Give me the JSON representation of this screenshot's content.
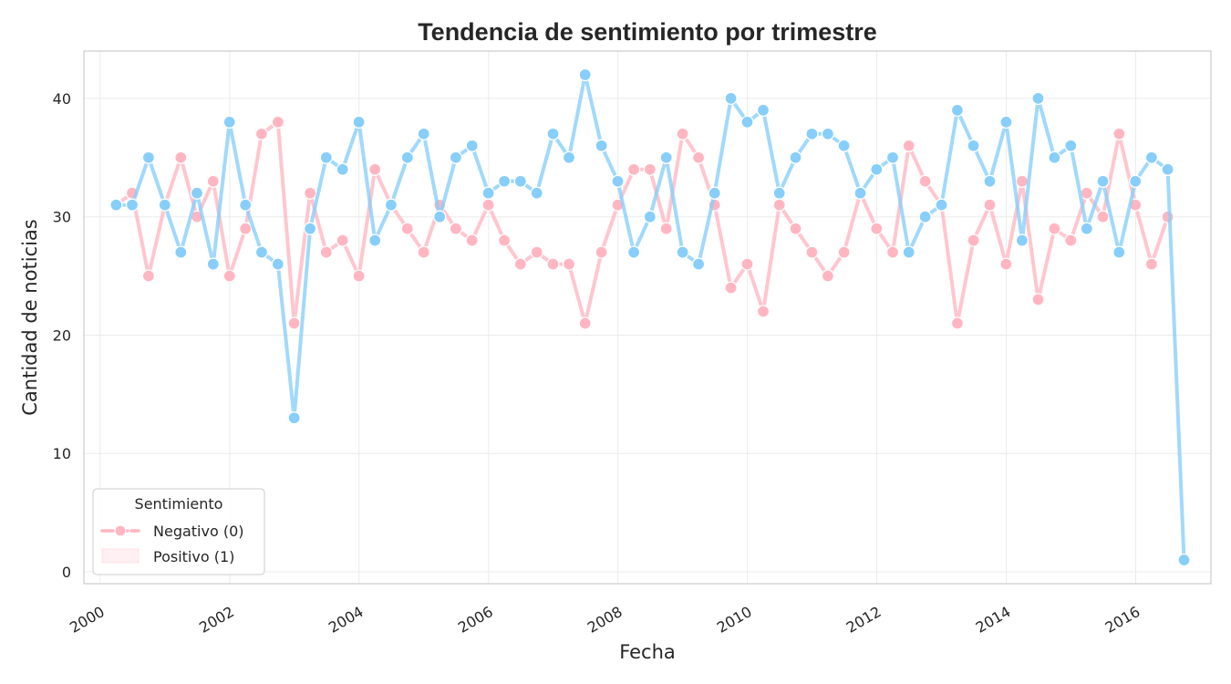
{
  "chart_data": {
    "type": "line",
    "title": "Tendencia de sentimiento por trimestre",
    "xlabel": "Fecha",
    "ylabel": "Cantidad de noticias",
    "x_ticks": [
      "2000",
      "2002",
      "2004",
      "2006",
      "2008",
      "2010",
      "2012",
      "2014",
      "2016"
    ],
    "y_ticks": [
      0,
      10,
      20,
      30,
      40
    ],
    "xlim": [
      "1999-10-01",
      "2017-03-01"
    ],
    "ylim": [
      -1,
      44
    ],
    "grid": true,
    "legend": {
      "title": "Sentimiento",
      "placement": "lower-left",
      "entries": [
        "Negativo (0)",
        "Positivo (1)"
      ]
    },
    "x": [
      "2000-03-31",
      "2000-06-30",
      "2000-09-30",
      "2000-12-31",
      "2001-03-31",
      "2001-06-30",
      "2001-09-30",
      "2001-12-31",
      "2002-03-31",
      "2002-06-30",
      "2002-09-30",
      "2002-12-31",
      "2003-03-31",
      "2003-06-30",
      "2003-09-30",
      "2003-12-31",
      "2004-03-31",
      "2004-06-30",
      "2004-09-30",
      "2004-12-31",
      "2005-03-31",
      "2005-06-30",
      "2005-09-30",
      "2005-12-31",
      "2006-03-31",
      "2006-06-30",
      "2006-09-30",
      "2006-12-31",
      "2007-03-31",
      "2007-06-30",
      "2007-09-30",
      "2007-12-31",
      "2008-03-31",
      "2008-06-30",
      "2008-09-30",
      "2008-12-31",
      "2009-03-31",
      "2009-06-30",
      "2009-09-30",
      "2009-12-31",
      "2010-03-31",
      "2010-06-30",
      "2010-09-30",
      "2010-12-31",
      "2011-03-31",
      "2011-06-30",
      "2011-09-30",
      "2011-12-31",
      "2012-03-31",
      "2012-06-30",
      "2012-09-30",
      "2012-12-31",
      "2013-03-31",
      "2013-06-30",
      "2013-09-30",
      "2013-12-31",
      "2014-03-31",
      "2014-06-30",
      "2014-09-30",
      "2014-12-31",
      "2015-03-31",
      "2015-06-30",
      "2015-09-30",
      "2015-12-31",
      "2016-03-31",
      "2016-06-30",
      "2016-09-30"
    ],
    "series": [
      {
        "name": "Negativo (0)",
        "color": "#ffb6c1",
        "values": [
          31,
          32,
          25,
          31,
          35,
          30,
          33,
          25,
          29,
          37,
          38,
          21,
          32,
          27,
          28,
          25,
          34,
          31,
          29,
          27,
          31,
          29,
          28,
          31,
          28,
          26,
          27,
          26,
          26,
          21,
          27,
          31,
          34,
          34,
          29,
          37,
          35,
          31,
          24,
          26,
          22,
          31,
          29,
          27,
          25,
          27,
          32,
          29,
          27,
          36,
          33,
          31,
          21,
          28,
          31,
          26,
          33,
          23,
          29,
          28,
          32,
          30,
          37,
          31,
          26,
          30,
          null
        ]
      },
      {
        "name": "Positivo (1)",
        "color": "#87cefa",
        "values": [
          31,
          31,
          35,
          31,
          27,
          32,
          26,
          38,
          31,
          27,
          26,
          13,
          29,
          35,
          34,
          38,
          28,
          31,
          35,
          37,
          30,
          35,
          36,
          32,
          33,
          33,
          32,
          37,
          35,
          42,
          36,
          33,
          27,
          30,
          35,
          27,
          26,
          32,
          40,
          38,
          39,
          32,
          35,
          37,
          37,
          36,
          32,
          34,
          35,
          27,
          30,
          31,
          39,
          36,
          33,
          38,
          28,
          40,
          35,
          36,
          29,
          33,
          27,
          33,
          35,
          34,
          1
        ]
      }
    ]
  }
}
